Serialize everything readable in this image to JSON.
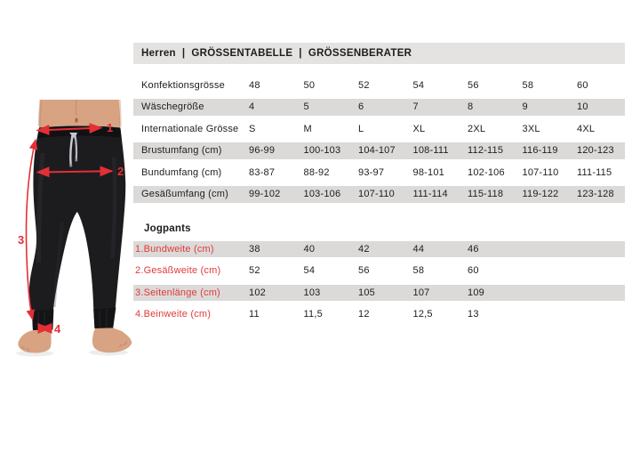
{
  "header": {
    "segments": [
      "Herren",
      "GRÖSSENTABELLE",
      "GRÖSSENBERATER"
    ],
    "separator": "|"
  },
  "size_table": {
    "rows": [
      {
        "label": "Konfektionsgrösse",
        "values": [
          "48",
          "50",
          "52",
          "54",
          "56",
          "58",
          "60"
        ]
      },
      {
        "label": "Wäschegröße",
        "values": [
          "4",
          "5",
          "6",
          "7",
          "8",
          "9",
          "10"
        ]
      },
      {
        "label": "Internationale Grösse",
        "values": [
          "S",
          "M",
          "L",
          "XL",
          "2XL",
          "3XL",
          "4XL"
        ]
      },
      {
        "label": "Brustumfang (cm)",
        "values": [
          "96-99",
          "100-103",
          "104-107",
          "108-111",
          "112-115",
          "116-119",
          "120-123"
        ]
      },
      {
        "label": "Bundumfang (cm)",
        "values": [
          "83-87",
          "88-92",
          "93-97",
          "98-101",
          "102-106",
          "107-110",
          "111-115"
        ]
      },
      {
        "label": "Gesäßumfang (cm)",
        "values": [
          "99-102",
          "103-106",
          "107-110",
          "111-114",
          "115-118",
          "119-122",
          "123-128"
        ]
      }
    ]
  },
  "jogpants_table": {
    "title": "Jogpants",
    "rows": [
      {
        "label": "1.Bundweite (cm)",
        "values": [
          "38",
          "40",
          "42",
          "44",
          "46"
        ]
      },
      {
        "label": "2.Gesäßweite (cm)",
        "values": [
          "52",
          "54",
          "56",
          "58",
          "60"
        ]
      },
      {
        "label": "3.Seitenlänge (cm)",
        "values": [
          "102",
          "103",
          "105",
          "107",
          "109"
        ]
      },
      {
        "label": "4.Beinweite (cm)",
        "values": [
          "11",
          "11,5",
          "12",
          "12,5",
          "13"
        ]
      }
    ]
  },
  "figure": {
    "annotations": [
      "1",
      "2",
      "3",
      "4"
    ]
  },
  "colors": {
    "accent_red": "#e42f35",
    "label_red": "#e23a3a",
    "stripe_gray": "#dbdad8",
    "header_bar_gray": "#e4e3e1",
    "text_black": "#1d1d1d",
    "pants_black": "#1c1c1f",
    "skin": "#d7a383"
  }
}
